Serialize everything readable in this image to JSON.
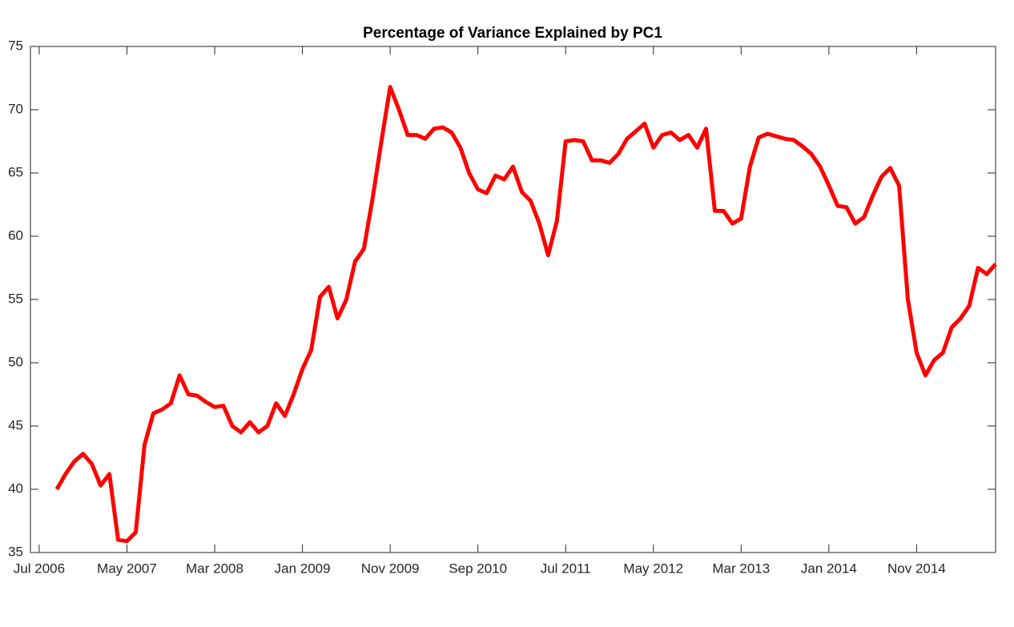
{
  "chart_data": {
    "type": "line",
    "title": "Percentage of Variance Explained by PC1",
    "x": [
      "2006-09",
      "2006-10",
      "2006-11",
      "2006-12",
      "2007-01",
      "2007-02",
      "2007-03",
      "2007-04",
      "2007-05",
      "2007-06",
      "2007-07",
      "2007-08",
      "2007-09",
      "2007-10",
      "2007-11",
      "2007-12",
      "2008-01",
      "2008-02",
      "2008-03",
      "2008-04",
      "2008-05",
      "2008-06",
      "2008-07",
      "2008-08",
      "2008-09",
      "2008-10",
      "2008-11",
      "2008-12",
      "2009-01",
      "2009-02",
      "2009-03",
      "2009-04",
      "2009-05",
      "2009-06",
      "2009-07",
      "2009-08",
      "2009-09",
      "2009-10",
      "2009-11",
      "2009-12",
      "2010-01",
      "2010-02",
      "2010-03",
      "2010-04",
      "2010-05",
      "2010-06",
      "2010-07",
      "2010-08",
      "2010-09",
      "2010-10",
      "2010-11",
      "2010-12",
      "2011-01",
      "2011-02",
      "2011-03",
      "2011-04",
      "2011-05",
      "2011-06",
      "2011-07",
      "2011-08",
      "2011-09",
      "2011-10",
      "2011-11",
      "2011-12",
      "2012-01",
      "2012-02",
      "2012-03",
      "2012-04",
      "2012-05",
      "2012-06",
      "2012-07",
      "2012-08",
      "2012-09",
      "2012-10",
      "2012-11",
      "2012-12",
      "2013-01",
      "2013-02",
      "2013-03",
      "2013-04",
      "2013-05",
      "2013-06",
      "2013-07",
      "2013-08",
      "2013-09",
      "2013-10",
      "2013-11",
      "2013-12",
      "2014-01",
      "2014-02",
      "2014-03",
      "2014-04",
      "2014-05",
      "2014-06",
      "2014-07",
      "2014-08",
      "2014-09",
      "2014-10",
      "2014-11",
      "2014-12",
      "2015-01",
      "2015-02",
      "2015-03",
      "2015-04",
      "2015-05",
      "2015-06",
      "2015-07",
      "2015-08"
    ],
    "values": [
      40,
      41.2,
      42.2,
      42.8,
      42,
      40.3,
      41.2,
      36,
      35.9,
      36.6,
      43.5,
      46,
      46.3,
      46.8,
      49,
      47.5,
      47.4,
      46.9,
      46.5,
      46.6,
      45,
      44.5,
      45.3,
      44.5,
      45,
      46.8,
      45.8,
      47.5,
      49.5,
      51,
      55.2,
      56,
      53.5,
      55,
      58,
      59,
      63,
      67.5,
      71.8,
      70,
      68,
      68,
      67.7,
      68.5,
      68.6,
      68.2,
      67,
      65,
      63.7,
      63.4,
      64.8,
      64.5,
      65.5,
      63.5,
      62.8,
      61,
      58.5,
      61.2,
      67.5,
      67.6,
      67.5,
      66,
      66,
      65.8,
      66.5,
      67.7,
      68.3,
      68.9,
      67,
      68,
      68.2,
      67.6,
      68,
      67,
      68.5,
      62,
      62,
      61,
      61.4,
      65.5,
      67.8,
      68.1,
      67.9,
      67.7,
      67.6,
      67.1,
      66.5,
      65.5,
      64,
      62.4,
      62.3,
      61,
      61.5,
      63.2,
      64.7,
      65.4,
      64,
      55,
      50.8,
      49,
      50.2,
      50.8,
      52.8,
      53.5,
      54.5,
      57.5,
      57,
      57.8
    ],
    "color": "#ff0000",
    "xlim": [
      "2006-06",
      "2015-08"
    ],
    "xticks": [
      {
        "value": "2006-07",
        "label": "Jul 2006"
      },
      {
        "value": "2007-05",
        "label": "May 2007"
      },
      {
        "value": "2008-03",
        "label": "Mar 2008"
      },
      {
        "value": "2009-01",
        "label": "Jan 2009"
      },
      {
        "value": "2009-11",
        "label": "Nov 2009"
      },
      {
        "value": "2010-09",
        "label": "Sep 2010"
      },
      {
        "value": "2011-07",
        "label": "Jul 2011"
      },
      {
        "value": "2012-05",
        "label": "May 2012"
      },
      {
        "value": "2013-03",
        "label": "Mar 2013"
      },
      {
        "value": "2014-01",
        "label": "Jan 2014"
      },
      {
        "value": "2014-11",
        "label": "Nov 2014"
      }
    ],
    "ylim": [
      35,
      75
    ],
    "yticks": [
      35,
      40,
      45,
      50,
      55,
      60,
      65,
      70,
      75
    ]
  }
}
